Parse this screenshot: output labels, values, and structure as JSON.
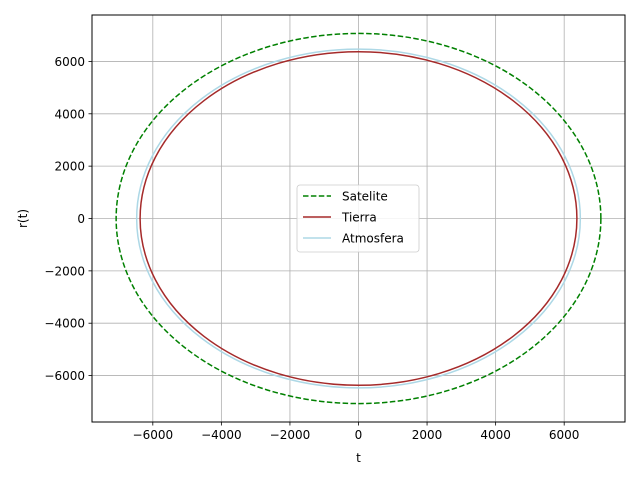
{
  "chart_data": {
    "type": "line",
    "title": "",
    "xlabel": "t",
    "ylabel": "r(t)",
    "xlim": [
      -7774,
      7774
    ],
    "ylim": [
      -7774,
      7774
    ],
    "xticks": [
      -6000,
      -4000,
      -2000,
      0,
      2000,
      4000,
      6000
    ],
    "yticks": [
      -6000,
      -4000,
      -2000,
      0,
      2000,
      4000,
      6000
    ],
    "xtick_labels": [
      "−6000",
      "−4000",
      "−2000",
      "0",
      "2000",
      "4000",
      "6000"
    ],
    "ytick_labels": [
      "−6000",
      "−4000",
      "−2000",
      "0",
      "2000",
      "4000",
      "6000"
    ],
    "grid": true,
    "legend_position": "center",
    "series": [
      {
        "name": "Satelite",
        "shape": "circle",
        "center": [
          0,
          0
        ],
        "radius": 7070,
        "color": "#008000",
        "style": "dashed"
      },
      {
        "name": "Tierra",
        "shape": "circle",
        "center": [
          0,
          0
        ],
        "radius": 6371,
        "color": "#a52a2a",
        "style": "solid"
      },
      {
        "name": "Atmosfera",
        "shape": "circle",
        "center": [
          0,
          0
        ],
        "radius": 6471,
        "color": "#add8e6",
        "style": "solid"
      }
    ]
  }
}
